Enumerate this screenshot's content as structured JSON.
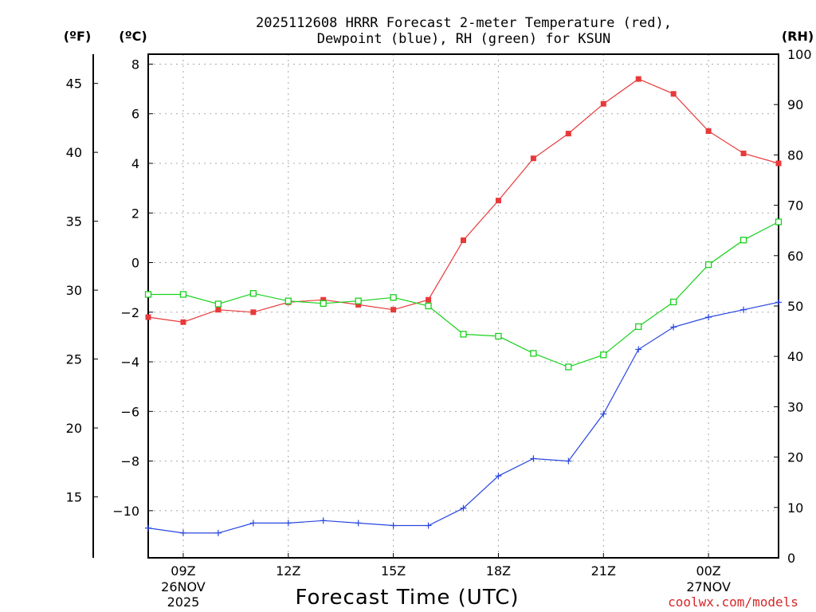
{
  "title_line1": "2025112608 HRRR Forecast 2-meter Temperature (red),",
  "title_line2": "Dewpoint (blue), RH (green) for KSUN",
  "unit_f": "(ºF)",
  "unit_c": "(ºC)",
  "unit_rh": "(RH)",
  "xlabel": "Forecast Time (UTC)",
  "credit": "coolwx.com/models",
  "colors": {
    "temperature": "#e8393a",
    "dewpoint": "#2846e0",
    "rh": "#19d11e"
  },
  "chart_data": {
    "type": "line",
    "title": "2025112608 HRRR Forecast 2-meter Temperature (red), Dewpoint (blue), RH (green) for KSUN",
    "xlabel": "Forecast Time (UTC)",
    "x_hours": [
      8,
      9,
      10,
      11,
      12,
      13,
      14,
      15,
      16,
      17,
      18,
      19,
      20,
      21,
      22,
      23,
      0,
      1,
      2
    ],
    "xlim": [
      8,
      26
    ],
    "x_ticks": [
      {
        "hour": 9,
        "label": "09Z",
        "sub1": "26NOV",
        "sub2": "2025"
      },
      {
        "hour": 12,
        "label": "12Z",
        "sub1": "",
        "sub2": ""
      },
      {
        "hour": 15,
        "label": "15Z",
        "sub1": "",
        "sub2": ""
      },
      {
        "hour": 18,
        "label": "18Z",
        "sub1": "",
        "sub2": ""
      },
      {
        "hour": 21,
        "label": "21Z",
        "sub1": "",
        "sub2": ""
      },
      {
        "hour": 24,
        "label": "00Z",
        "sub1": "27NOV",
        "sub2": ""
      }
    ],
    "left_axis_c": {
      "ylim": [
        -11.9,
        8.4
      ],
      "ticks": [
        8,
        6,
        4,
        2,
        0,
        -2,
        -4,
        -6,
        -8,
        -10
      ],
      "tick_labels": [
        "8",
        "6",
        "4",
        "2",
        "0",
        "−2",
        "−4",
        "−6",
        "−8",
        "−10"
      ]
    },
    "left_axis_f": {
      "ticks": [
        45,
        40,
        35,
        30,
        25,
        20,
        15
      ],
      "tick_labels": [
        "45",
        "40",
        "35",
        "30",
        "25",
        "20",
        "15"
      ]
    },
    "right_axis_rh": {
      "ylim": [
        0,
        100
      ],
      "ticks": [
        0,
        10,
        20,
        30,
        40,
        50,
        60,
        70,
        80,
        90,
        100
      ],
      "tick_labels": [
        "0",
        "10",
        "20",
        "30",
        "40",
        "50",
        "60",
        "70",
        "80",
        "90",
        "100"
      ]
    },
    "series": [
      {
        "name": "Temperature",
        "unit": "C",
        "axis": "c",
        "values": [
          -2.2,
          -2.4,
          -1.9,
          -2.0,
          -1.6,
          -1.5,
          -1.7,
          -1.9,
          -1.5,
          0.9,
          2.5,
          4.2,
          5.2,
          6.4,
          7.4,
          6.8,
          5.3,
          4.4,
          4.0
        ]
      },
      {
        "name": "Dewpoint",
        "unit": "C",
        "axis": "c",
        "values": [
          -10.7,
          -10.9,
          -10.9,
          -10.5,
          -10.5,
          -10.4,
          -10.5,
          -10.6,
          -10.6,
          -9.9,
          -8.6,
          -7.9,
          -8.0,
          -6.1,
          -3.5,
          -2.6,
          -2.2,
          -1.9,
          -1.6
        ]
      },
      {
        "name": "RH",
        "unit": "%",
        "axis": "rh",
        "values": [
          52.3,
          52.3,
          50.4,
          52.5,
          51.0,
          50.5,
          51.0,
          51.7,
          50.0,
          44.4,
          44.0,
          40.6,
          37.9,
          40.3,
          45.9,
          50.8,
          58.2,
          63.1,
          66.7
        ]
      }
    ]
  }
}
